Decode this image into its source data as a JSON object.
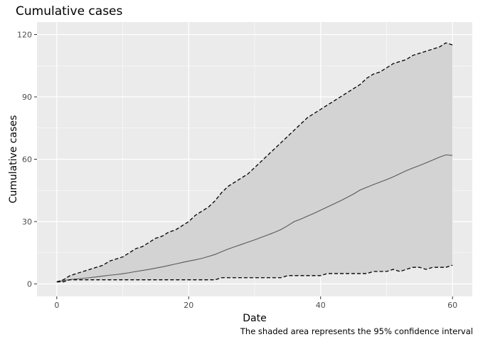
{
  "chart_data": {
    "type": "line",
    "title": "Cumulative cases",
    "xlabel": "Date",
    "ylabel": "Cumulative cases",
    "caption": "The shaded area represents the 95% confidence interval",
    "xlim": [
      -3,
      63
    ],
    "ylim": [
      -6,
      126
    ],
    "x_ticks": [
      0,
      20,
      40,
      60
    ],
    "y_ticks": [
      0,
      30,
      60,
      90,
      120
    ],
    "x_tick_labels": [
      "0",
      "20",
      "40",
      "60"
    ],
    "y_tick_labels": [
      "0",
      "30",
      "60",
      "90",
      "120"
    ],
    "grid": true,
    "legend": "none",
    "colors": {
      "panel": "#ebebeb",
      "grid": "#ffffff",
      "ribbon": "#d3d3d3",
      "mean_line": "#595959",
      "bound_line": "#000000"
    },
    "x": [
      0,
      1,
      2,
      3,
      4,
      5,
      6,
      7,
      8,
      9,
      10,
      11,
      12,
      13,
      14,
      15,
      16,
      17,
      18,
      19,
      20,
      21,
      22,
      23,
      24,
      25,
      26,
      27,
      28,
      29,
      30,
      31,
      32,
      33,
      34,
      35,
      36,
      37,
      38,
      39,
      40,
      41,
      42,
      43,
      44,
      45,
      46,
      47,
      48,
      49,
      50,
      51,
      52,
      53,
      54,
      55,
      56,
      57,
      58,
      59,
      60
    ],
    "series": [
      {
        "role": "mean",
        "values": [
          1,
          1.6,
          2.1,
          2.4,
          2.7,
          3,
          3.4,
          3.8,
          4.2,
          4.5,
          4.9,
          5.4,
          6,
          6.5,
          7,
          7.6,
          8.2,
          8.9,
          9.6,
          10.3,
          11,
          11.6,
          12.3,
          13.2,
          14.2,
          15.5,
          16.8,
          17.9,
          19,
          20.1,
          21.2,
          22.4,
          23.6,
          24.8,
          26.2,
          28,
          30,
          31.2,
          32.6,
          34,
          35.5,
          37,
          38.5,
          40,
          41.6,
          43.3,
          45.2,
          46.5,
          47.8,
          49,
          50.2,
          51.5,
          53,
          54.5,
          55.8,
          57,
          58.3,
          59.6,
          61,
          62.1,
          61.8
        ]
      },
      {
        "role": "lower",
        "values": [
          1,
          1,
          2,
          2,
          2,
          2,
          2,
          2,
          2,
          2,
          2,
          2,
          2,
          2,
          2,
          2,
          2,
          2,
          2,
          2,
          2,
          2,
          2,
          2,
          2,
          3,
          3,
          3,
          3,
          3,
          3,
          3,
          3,
          3,
          3,
          4,
          4,
          4,
          4,
          4,
          4,
          5,
          5,
          5,
          5,
          5,
          5,
          5,
          6,
          6,
          6,
          7,
          6,
          7,
          8,
          8,
          7,
          8,
          8,
          8,
          9
        ]
      },
      {
        "role": "upper",
        "values": [
          1,
          2,
          4,
          5,
          6,
          7,
          8,
          9,
          11,
          12,
          13,
          15,
          17,
          18,
          20,
          22,
          23,
          25,
          26,
          28,
          30,
          33,
          35,
          37,
          40,
          44,
          47,
          49,
          51,
          53,
          56,
          59,
          62,
          65,
          68,
          71,
          74,
          77,
          80,
          82,
          84,
          86,
          88,
          90,
          92,
          94,
          96,
          99,
          101,
          102,
          104,
          106,
          107,
          108,
          110,
          111,
          112,
          113,
          114,
          116,
          115
        ]
      }
    ]
  }
}
